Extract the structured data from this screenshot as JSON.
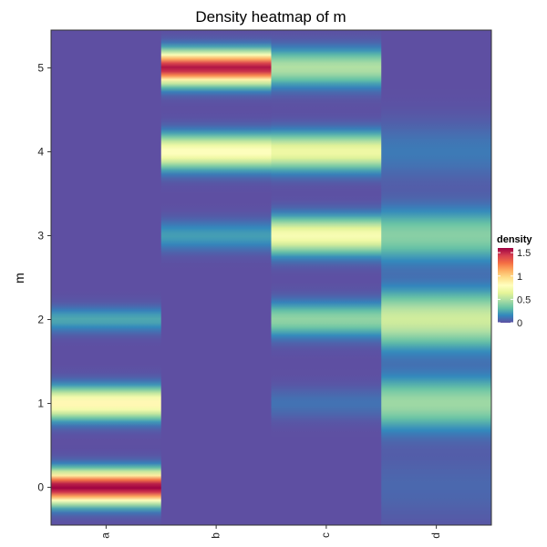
{
  "chart_data": {
    "type": "heatmap",
    "title": "Density heatmap of m",
    "xlabel": "",
    "ylabel": "m",
    "categories": [
      "a",
      "b",
      "c",
      "d"
    ],
    "y_ticks": [
      0,
      1,
      2,
      3,
      4,
      5
    ],
    "ylim": [
      -0.45,
      5.45
    ],
    "legend": {
      "title": "density",
      "ticks": [
        0,
        0.5,
        1,
        1.5
      ],
      "tick_labels": [
        "0",
        "0.5",
        "1",
        "1.5"
      ],
      "range": [
        0,
        1.6
      ],
      "placement": "right"
    },
    "colorscale": [
      "#5E4FA2",
      "#3288BD",
      "#66C2A5",
      "#ABDDA4",
      "#E6F598",
      "#FFFFBF",
      "#FEE08B",
      "#FDAE61",
      "#F46D43",
      "#D53E4F",
      "#9E0142"
    ],
    "grid": false,
    "series": [
      {
        "name": "a",
        "peaks": [
          {
            "m": 0,
            "density": 1.6,
            "sd": 0.13
          },
          {
            "m": 1,
            "density": 0.85,
            "sd": 0.13
          },
          {
            "m": 2,
            "density": 0.25,
            "sd": 0.1
          }
        ]
      },
      {
        "name": "b",
        "peaks": [
          {
            "m": 3,
            "density": 0.22,
            "sd": 0.12
          },
          {
            "m": 4,
            "density": 0.8,
            "sd": 0.14
          },
          {
            "m": 5,
            "density": 1.55,
            "sd": 0.13
          }
        ]
      },
      {
        "name": "c",
        "peaks": [
          {
            "m": 1,
            "density": 0.1,
            "sd": 0.13
          },
          {
            "m": 2,
            "density": 0.42,
            "sd": 0.14
          },
          {
            "m": 3,
            "density": 0.75,
            "sd": 0.15
          },
          {
            "m": 4,
            "density": 0.7,
            "sd": 0.15
          },
          {
            "m": 5,
            "density": 0.5,
            "sd": 0.15
          }
        ]
      },
      {
        "name": "d",
        "peaks": [
          {
            "m": 0,
            "density": 0.07,
            "sd": 0.3
          },
          {
            "m": 1,
            "density": 0.45,
            "sd": 0.22
          },
          {
            "m": 2,
            "density": 0.58,
            "sd": 0.24
          },
          {
            "m": 3,
            "density": 0.4,
            "sd": 0.22
          },
          {
            "m": 4,
            "density": 0.12,
            "sd": 0.25
          }
        ]
      }
    ]
  }
}
